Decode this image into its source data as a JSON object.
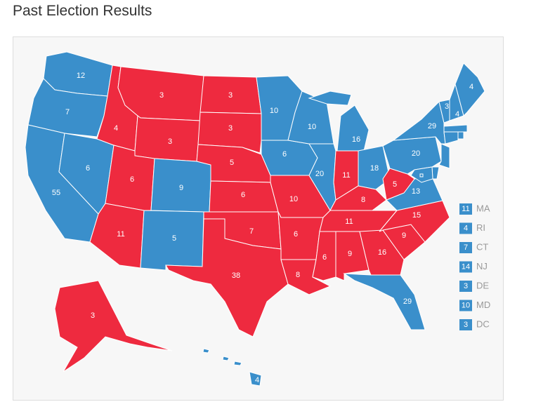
{
  "header": {
    "title": "Past Election Results"
  },
  "states": [
    {
      "votes": 12,
      "color": "#3a8fcb"
    },
    {
      "votes": 7,
      "color": "#3a8fcb"
    },
    {
      "votes": 55,
      "color": "#3a8fcb"
    },
    {
      "votes": 6,
      "color": "#3a8fcb"
    },
    {
      "votes": 4,
      "color": "#ee2a3f"
    },
    {
      "votes": 3,
      "color": "#ee2a3f"
    },
    {
      "votes": 3,
      "color": "#ee2a3f"
    },
    {
      "votes": 6,
      "color": "#ee2a3f"
    },
    {
      "votes": 11,
      "color": "#ee2a3f"
    },
    {
      "votes": 9,
      "color": "#3a8fcb"
    },
    {
      "votes": 5,
      "color": "#3a8fcb"
    },
    {
      "votes": 3,
      "color": "#ee2a3f"
    },
    {
      "votes": 3,
      "color": "#ee2a3f"
    },
    {
      "votes": 5,
      "color": "#ee2a3f"
    },
    {
      "votes": 6,
      "color": "#ee2a3f"
    },
    {
      "votes": 7,
      "color": "#ee2a3f"
    },
    {
      "votes": 38,
      "color": "#ee2a3f"
    },
    {
      "votes": 10,
      "color": "#3a8fcb"
    },
    {
      "votes": 6,
      "color": "#3a8fcb"
    },
    {
      "votes": 10,
      "color": "#ee2a3f"
    },
    {
      "votes": 6,
      "color": "#ee2a3f"
    },
    {
      "votes": 8,
      "color": "#ee2a3f"
    },
    {
      "votes": 10,
      "color": "#3a8fcb"
    },
    {
      "votes": 20,
      "color": "#3a8fcb"
    },
    {
      "votes": 16,
      "color": "#3a8fcb"
    },
    {
      "votes": 11,
      "color": "#ee2a3f"
    },
    {
      "votes": 18,
      "color": "#3a8fcb"
    },
    {
      "votes": 8,
      "color": "#ee2a3f"
    },
    {
      "votes": 11,
      "color": "#ee2a3f"
    },
    {
      "votes": 6,
      "color": "#ee2a3f"
    },
    {
      "votes": 9,
      "color": "#ee2a3f"
    },
    {
      "votes": 16,
      "color": "#ee2a3f"
    },
    {
      "votes": 29,
      "color": "#3a8fcb"
    },
    {
      "votes": 9,
      "color": "#ee2a3f"
    },
    {
      "votes": 15,
      "color": "#ee2a3f"
    },
    {
      "votes": 13,
      "color": "#3a8fcb"
    },
    {
      "votes": 5,
      "color": "#ee2a3f"
    },
    {
      "votes": 20,
      "color": "#3a8fcb"
    },
    {
      "votes": 29,
      "color": "#3a8fcb"
    },
    {
      "votes": 3,
      "color": "#3a8fcb"
    },
    {
      "votes": 4,
      "color": "#3a8fcb"
    },
    {
      "votes": 4,
      "color": "#3a8fcb"
    },
    {
      "votes": 3,
      "color": "#ee2a3f"
    },
    {
      "votes": 4,
      "color": "#3a8fcb"
    }
  ],
  "small_states": [
    {
      "label": "MA",
      "votes": 11,
      "color": "#3a8fcb"
    },
    {
      "label": "RI",
      "votes": 4,
      "color": "#3a8fcb"
    },
    {
      "label": "CT",
      "votes": 7,
      "color": "#3a8fcb"
    },
    {
      "label": "NJ",
      "votes": 14,
      "color": "#3a8fcb"
    },
    {
      "label": "DE",
      "votes": 3,
      "color": "#3a8fcb"
    },
    {
      "label": "MD",
      "votes": 10,
      "color": "#3a8fcb"
    },
    {
      "label": "DC",
      "votes": 3,
      "color": "#3a8fcb"
    }
  ]
}
